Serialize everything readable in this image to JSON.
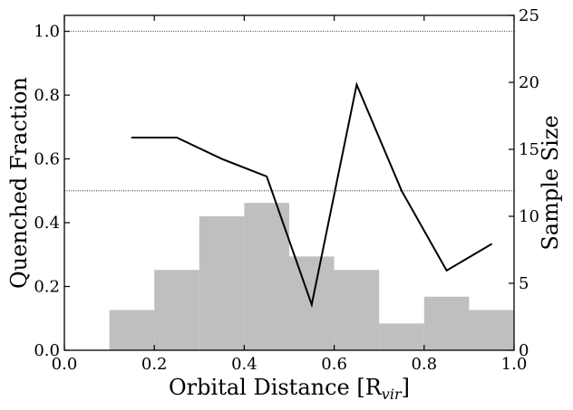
{
  "chart_data": {
    "type": "bar+line",
    "xlabel": "Orbital Distance [R",
    "xlabel_sub": "vir",
    "xlabel_close": "]",
    "ylabel_left": "Quenched Fraction",
    "ylabel_right": "Sample Size",
    "xlim": [
      0.0,
      1.0
    ],
    "ylim_left": [
      0.0,
      1.05
    ],
    "ylim_right": [
      0,
      25
    ],
    "x_ticks": [
      "0.0",
      "0.2",
      "0.4",
      "0.6",
      "0.8",
      "1.0"
    ],
    "y_left_ticks": [
      "0.0",
      "0.2",
      "0.4",
      "0.6",
      "0.8",
      "1.0"
    ],
    "y_right_ticks": [
      "0",
      "5",
      "10",
      "15",
      "20",
      "25"
    ],
    "reference_lines_left": [
      1.0,
      0.5
    ],
    "histogram": {
      "axis": "right",
      "color": "#bfbfbf",
      "bins": [
        [
          0.1,
          0.2
        ],
        [
          0.2,
          0.3
        ],
        [
          0.3,
          0.4
        ],
        [
          0.4,
          0.5
        ],
        [
          0.5,
          0.6
        ],
        [
          0.6,
          0.7
        ],
        [
          0.7,
          0.8
        ],
        [
          0.8,
          0.9
        ],
        [
          0.9,
          1.0
        ]
      ],
      "values": [
        3,
        6,
        10,
        11,
        7,
        6,
        2,
        4,
        3
      ]
    },
    "line": {
      "axis": "left",
      "color": "#000000",
      "x": [
        0.15,
        0.25,
        0.35,
        0.45,
        0.55,
        0.65,
        0.75,
        0.85,
        0.95
      ],
      "y": [
        0.667,
        0.667,
        0.6,
        0.545,
        0.143,
        0.833,
        0.5,
        0.25,
        0.333
      ]
    }
  }
}
